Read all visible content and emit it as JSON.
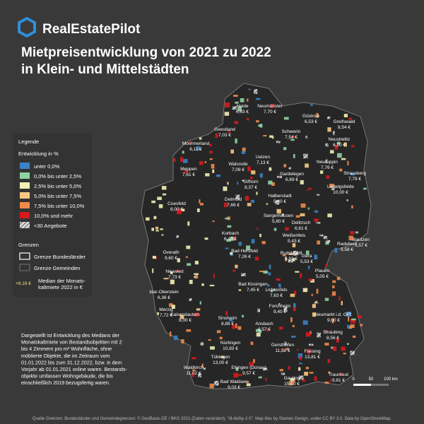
{
  "header": {
    "brand": "RealEstatePilot",
    "title_lines": [
      "Mietpreisentwicklung von 2021 zu 2022",
      "in Klein- und Mittelstädten"
    ]
  },
  "legend": {
    "title": "Legende",
    "subtitle": "Entwicklung in %",
    "items": [
      {
        "label": "unter 0,0%",
        "color": "#3b82c4"
      },
      {
        "label": "0,0% bis unter 2,5%",
        "color": "#8fd3a4"
      },
      {
        "label": "2,5% bis unter 5,0%",
        "color": "#f3efb4"
      },
      {
        "label": "5,0% bis unter 7,5%",
        "color": "#f8c982"
      },
      {
        "label": "7,5% bis unter 10,0%",
        "color": "#f08a4b"
      },
      {
        "label": "10,0% und mehr",
        "color": "#d7191c"
      },
      {
        "label": "<30 Angebote",
        "color": "hatch"
      }
    ],
    "borders_title": "Grenzen",
    "borders": [
      "Grenze Bundesländer",
      "Grenze Gemeinden"
    ],
    "sample_value": "+8,16 €",
    "sample_lines": [
      "Median der Monats-",
      "kaltmiete 2022 in €"
    ]
  },
  "cities": [
    {
      "name": "Heide",
      "value": "6,63 €"
    },
    {
      "name": "Neumünster",
      "value": "7,70 €"
    },
    {
      "name": "Güstrow",
      "value": "6,53 €"
    },
    {
      "name": "Greifswald",
      "value": "8,54 €"
    },
    {
      "name": "Geestland",
      "value": "7,03 €"
    },
    {
      "name": "Schwerin",
      "value": "7,54 €"
    },
    {
      "name": "Moormerland",
      "value": "6,11 €"
    },
    {
      "name": "Neustrelitz",
      "value": "6,20 €"
    },
    {
      "name": "Uelzen",
      "value": "7,13 €"
    },
    {
      "name": "Walsrode",
      "value": "7,08 €"
    },
    {
      "name": "Neuruppin",
      "value": "7,76 €"
    },
    {
      "name": "Meppen",
      "value": "7,61 €"
    },
    {
      "name": "Strausberg",
      "value": "7,79 €"
    },
    {
      "name": "Gardelegen",
      "value": "6,69 €"
    },
    {
      "name": "Gifhorn",
      "value": "8,37 €"
    },
    {
      "name": "Ludwigsfelde",
      "value": "10,00 €"
    },
    {
      "name": "Coesfeld",
      "value": "8,00 €"
    },
    {
      "name": "Detmold",
      "value": "7,66 €"
    },
    {
      "name": "Halberstadt",
      "value": "5,40 €"
    },
    {
      "name": "Sangerhausen",
      "value": "5,80 €"
    },
    {
      "name": "Delitzsch",
      "value": "6,61 €"
    },
    {
      "name": "Korbach",
      "value": "6,40 €"
    },
    {
      "name": "Weißenfels",
      "value": "5,43 €"
    },
    {
      "name": "Bautzen",
      "value": "5,57 €"
    },
    {
      "name": "Bad Hersfeld",
      "value": "7,26 €"
    },
    {
      "name": "Rudolstadt",
      "value": "6,82 €"
    },
    {
      "name": "Radebeul",
      "value": "8,58 €"
    },
    {
      "name": "Overath",
      "value": "9,60 €"
    },
    {
      "name": "Neuwied",
      "value": "7,73 €"
    },
    {
      "name": "Gera",
      "value": "5,53 €"
    },
    {
      "name": "Plauen",
      "value": "5,05 €"
    },
    {
      "name": "Bad Kissingen",
      "value": "7,45 €"
    },
    {
      "name": "Lichtenfels",
      "value": "7,63 €"
    },
    {
      "name": "Idar-Oberstein",
      "value": "6,36 €"
    },
    {
      "name": "Merzig",
      "value": "7,72 €"
    },
    {
      "name": "Forchheim",
      "value": "9,40 €"
    },
    {
      "name": "Kaiserslautern",
      "value": "8,00 €"
    },
    {
      "name": "Neumarkt i.d. OPf.",
      "value": "9,00 €"
    },
    {
      "name": "Sinsheim",
      "value": "8,88 €"
    },
    {
      "name": "Ansbach",
      "value": "8,57 €"
    },
    {
      "name": "Straubing",
      "value": "8,56 €"
    },
    {
      "name": "Nürtingen",
      "value": "10,83 €"
    },
    {
      "name": "Gersthofen",
      "value": "11,38 €"
    },
    {
      "name": "Freising",
      "value": "13,81 €"
    },
    {
      "name": "Tübingen",
      "value": "13,00 €"
    },
    {
      "name": "Waldkirch",
      "value": "11,02 €"
    },
    {
      "name": "Ehingen (Donau)",
      "value": "9,57 €"
    },
    {
      "name": "Traunreut",
      "value": "9,81 €"
    },
    {
      "name": "Gauting",
      "value": "15,00 €"
    },
    {
      "name": "Bad Waldsee",
      "value": "9,03 €"
    }
  ],
  "note_lines": [
    "Dargestellt ist Entwicklung des Medians der",
    "Monatskaltmiete von Bestandsobjekten mit 2",
    "bis 4 Zimmern pro m² Wohnfläche, ohne",
    "möblierte Objekte, die im Zeitraum vom",
    "01.01.2022 bis zum 31.12.2022, bzw. in dem",
    "Vorjahr ab 01.01.2021 online waren. Bestands-",
    "objekte umfassen Wohngebäude, die bis",
    "einschließlich 2019 bezugsfertig waren."
  ],
  "scale": {
    "labels": [
      "0",
      "50",
      "100 km"
    ]
  },
  "source": "Quelle Grenzen: Bundesländer und Gemeindegrenzen: © GeoBasis-DE / BKG 2021 (Daten verändert), \"dl-de/by-2-0\". Map tiles by Stamen Design, under CC BY 3.0. Data by OpenStreetMap."
}
